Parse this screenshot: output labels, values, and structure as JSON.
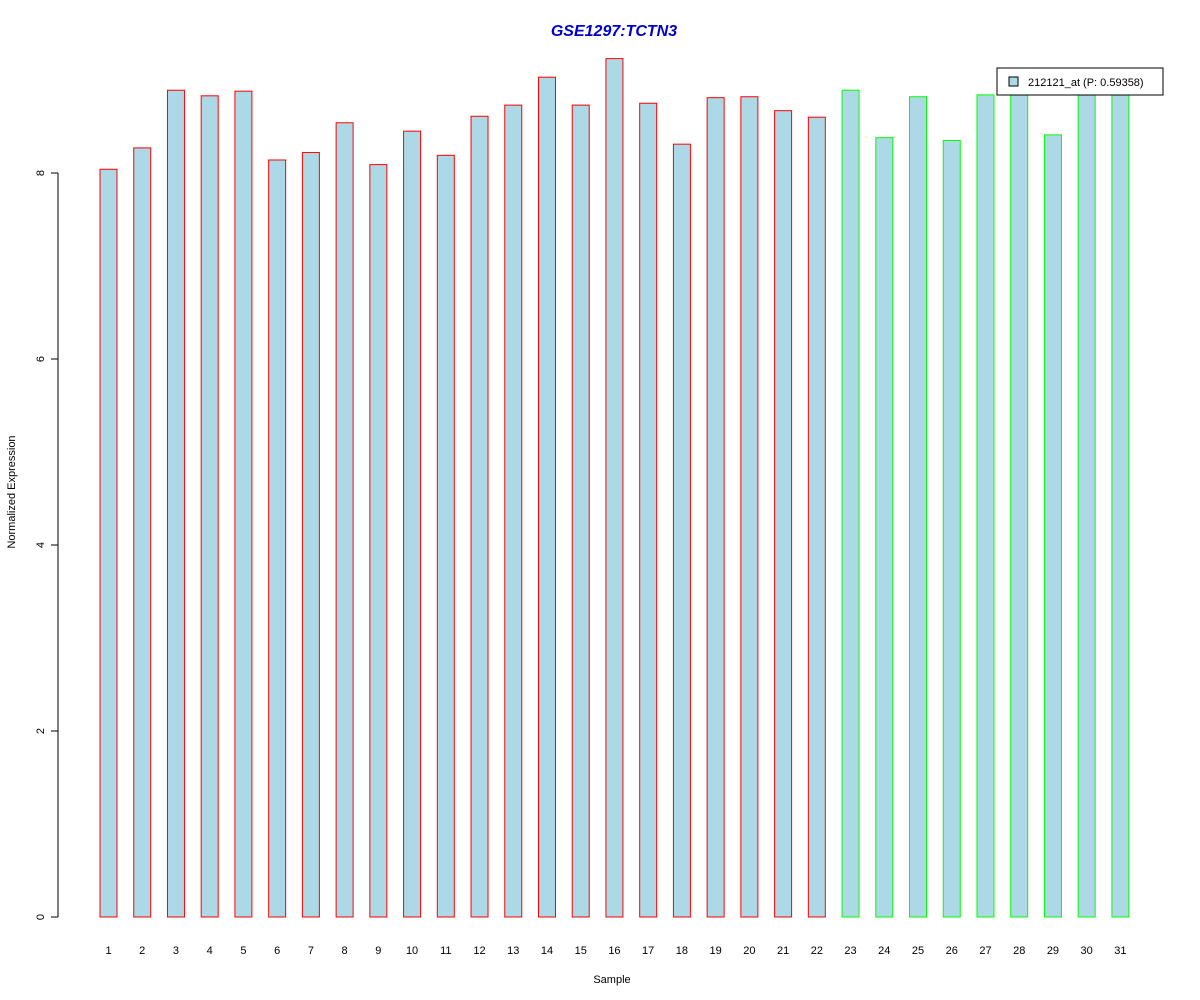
{
  "chart_data": {
    "type": "bar",
    "title": "GSE1297:TCTN3",
    "xlabel": "Sample",
    "ylabel": "Normalized Expression",
    "categories": [
      "1",
      "2",
      "3",
      "4",
      "5",
      "6",
      "7",
      "8",
      "9",
      "10",
      "11",
      "12",
      "13",
      "14",
      "15",
      "16",
      "17",
      "18",
      "19",
      "20",
      "21",
      "22",
      "23",
      "24",
      "25",
      "26",
      "27",
      "28",
      "29",
      "30",
      "31"
    ],
    "series": [
      {
        "name": "212121_at (P: 0.59358)",
        "values": [
          8.04,
          8.27,
          8.89,
          8.83,
          8.88,
          8.14,
          8.22,
          8.54,
          8.09,
          8.45,
          8.19,
          8.61,
          8.73,
          9.03,
          8.73,
          9.23,
          8.75,
          8.31,
          8.81,
          8.82,
          8.67,
          8.6,
          8.89,
          8.38,
          8.82,
          8.35,
          8.84,
          8.86,
          8.41,
          8.86,
          8.86
        ]
      }
    ],
    "group_colors": [
      "#ff0000",
      "#ff0000",
      "#ff0000",
      "#ff0000",
      "#ff0000",
      "#ff0000",
      "#ff0000",
      "#ff0000",
      "#ff0000",
      "#ff0000",
      "#ff0000",
      "#ff0000",
      "#ff0000",
      "#ff0000",
      "#ff0000",
      "#ff0000",
      "#ff0000",
      "#ff0000",
      "#ff0000",
      "#ff0000",
      "#ff0000",
      "#ff0000",
      "#00ff00",
      "#00ff00",
      "#00ff00",
      "#00ff00",
      "#00ff00",
      "#00ff00",
      "#00ff00",
      "#00ff00",
      "#00ff00"
    ],
    "yticks": [
      0,
      2,
      4,
      6,
      8
    ],
    "ylim": [
      0,
      9.3
    ],
    "grid": false,
    "legend_position": "top-right",
    "colors": {
      "bar_fill": "#add8e6",
      "title": "#0000cd",
      "axis": "#000000"
    }
  }
}
